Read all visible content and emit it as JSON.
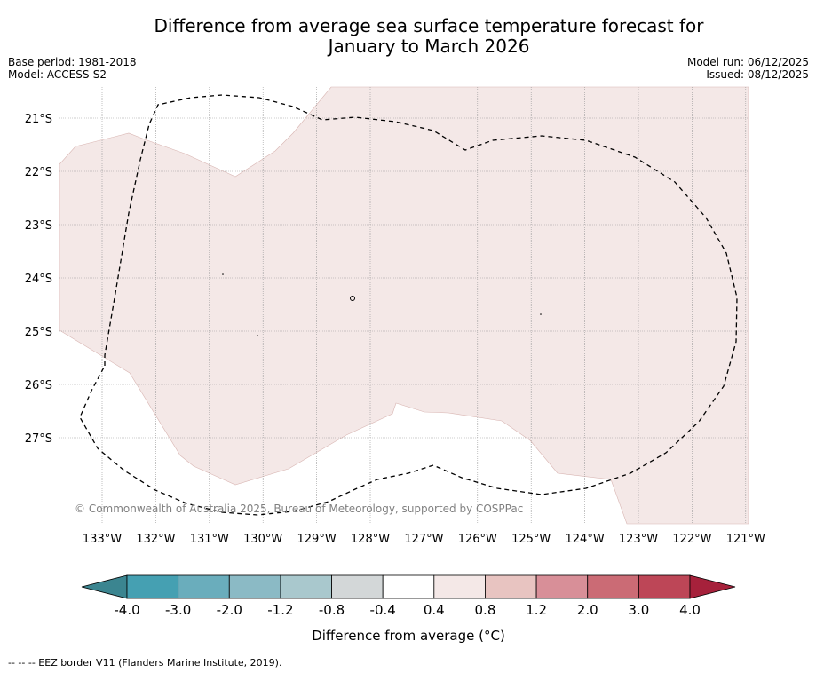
{
  "title_line1": "Difference from average sea surface temperature forecast for",
  "title_line2": "January to March 2026",
  "base_period": "Base period: 1981-2018",
  "model": "Model: ACCESS-S2",
  "model_run": "Model run: 06/12/2025",
  "issued": "Issued: 08/12/2025",
  "copyright": "© Commonwealth of Australia 2025, Bureau of Meteorology, supported by COSPPac",
  "lat_labels": [
    "21°S",
    "22°S",
    "23°S",
    "24°S",
    "25°S",
    "26°S",
    "27°S"
  ],
  "lon_labels": [
    "133°W",
    "132°W",
    "131°W",
    "130°W",
    "129°W",
    "128°W",
    "127°W",
    "126°W",
    "125°W",
    "124°W",
    "123°W",
    "122°W",
    "121°W"
  ],
  "colorbar": {
    "label": "Difference from average (°C)",
    "ticks": [
      "-4.0",
      "-3.0",
      "-2.0",
      "-1.2",
      "-0.8",
      "-0.4",
      "0.4",
      "0.8",
      "1.2",
      "2.0",
      "3.0",
      "4.0"
    ],
    "colors": [
      "#45a0b2",
      "#6aadbc",
      "#8bbac5",
      "#a9c8cd",
      "#d3d7d8",
      "#ffffff",
      "#f4e8e7",
      "#e8c4c1",
      "#d88f98",
      "#cb6b75",
      "#bd4657"
    ],
    "under_color": "#3b8590",
    "over_color": "#a6213b"
  },
  "anomaly_fill_color": "#f4e8e7",
  "footnote": "-- -- -- EEZ border V11 (Flanders Marine Institute, 2019)."
}
